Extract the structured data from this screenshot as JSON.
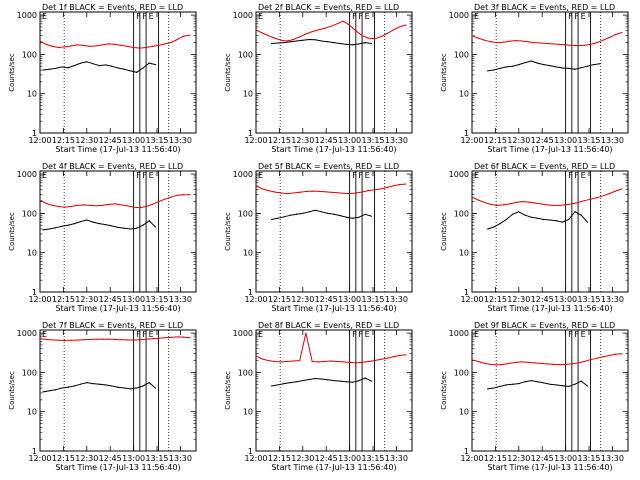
{
  "figure": {
    "xlabel": "Start Time (17-Jul-13 11:56:40)",
    "ylabel": "Counts/sec",
    "x_ticks": [
      "12:00",
      "12:15",
      "12:30",
      "12:45",
      "13:00",
      "13:15",
      "13:30"
    ],
    "x_tick_minutes": [
      0,
      15,
      30,
      45,
      60,
      75,
      90
    ],
    "x_range_minutes": [
      0,
      100
    ],
    "y_ticks": [
      "1",
      "10",
      "100",
      "1000"
    ],
    "y_tick_values": [
      1,
      10,
      100,
      1000
    ],
    "y_range": [
      1,
      1200
    ],
    "y_scale": "log",
    "colors": {
      "events": "#000000",
      "lld": "#e00000"
    },
    "flag_labels": [
      "F",
      "F",
      "E"
    ]
  },
  "chart_data": [
    {
      "type": "line",
      "title": "Det 1f BLACK = Events, RED = LLD",
      "series": [
        {
          "name": "Events",
          "color": "#000000",
          "x": [
            2,
            6,
            10,
            14,
            18,
            22,
            26,
            30,
            34,
            38,
            42,
            46,
            50,
            54,
            58,
            62,
            66,
            70,
            74
          ],
          "y": [
            40,
            42,
            44,
            48,
            46,
            52,
            60,
            65,
            58,
            52,
            54,
            50,
            45,
            42,
            38,
            35,
            45,
            60,
            55
          ]
        },
        {
          "name": "LLD",
          "color": "#e00000",
          "x": [
            0,
            4,
            8,
            12,
            16,
            20,
            24,
            28,
            32,
            36,
            40,
            44,
            48,
            52,
            56,
            60,
            64,
            68,
            72,
            76,
            80,
            84,
            88,
            92,
            96
          ],
          "y": [
            220,
            180,
            160,
            150,
            155,
            165,
            175,
            170,
            160,
            165,
            175,
            185,
            180,
            170,
            160,
            150,
            145,
            150,
            160,
            170,
            185,
            200,
            240,
            290,
            310
          ]
        }
      ],
      "dotted_x": [
        15.5,
        82.5
      ],
      "flag_x": [
        60,
        64,
        68,
        76
      ]
    },
    {
      "type": "line",
      "title": "Det 2f BLACK = Events, RED = LLD",
      "series": [
        {
          "name": "Events",
          "color": "#000000",
          "x": [
            10,
            14,
            18,
            22,
            26,
            30,
            34,
            38,
            42,
            46,
            50,
            54,
            58,
            62,
            66,
            70,
            74
          ],
          "y": [
            190,
            195,
            200,
            210,
            220,
            230,
            240,
            235,
            220,
            210,
            200,
            190,
            180,
            175,
            185,
            200,
            190
          ]
        },
        {
          "name": "LLD",
          "color": "#e00000",
          "x": [
            0,
            4,
            8,
            12,
            16,
            20,
            24,
            28,
            32,
            36,
            40,
            44,
            48,
            52,
            56,
            60,
            64,
            68,
            72,
            76,
            80,
            84,
            88,
            92,
            96
          ],
          "y": [
            420,
            350,
            300,
            260,
            230,
            220,
            240,
            280,
            330,
            380,
            420,
            460,
            520,
            600,
            700,
            550,
            400,
            300,
            260,
            250,
            280,
            340,
            420,
            500,
            560
          ]
        }
      ],
      "dotted_x": [
        15.5,
        82.5
      ],
      "flag_x": [
        60,
        64,
        68,
        76
      ]
    },
    {
      "type": "line",
      "title": "Det 3f BLACK = Events, RED = LLD",
      "series": [
        {
          "name": "Events",
          "color": "#000000",
          "x": [
            10,
            14,
            18,
            22,
            26,
            30,
            34,
            38,
            42,
            46,
            50,
            54,
            58,
            62,
            66,
            70,
            74,
            78,
            82
          ],
          "y": [
            38,
            40,
            44,
            48,
            50,
            55,
            62,
            68,
            60,
            55,
            52,
            48,
            45,
            44,
            42,
            46,
            50,
            55,
            58
          ]
        },
        {
          "name": "LLD",
          "color": "#e00000",
          "x": [
            0,
            4,
            8,
            12,
            16,
            20,
            24,
            28,
            32,
            36,
            40,
            44,
            48,
            52,
            56,
            60,
            64,
            68,
            72,
            76,
            80,
            84,
            88,
            92,
            96
          ],
          "y": [
            300,
            260,
            230,
            210,
            200,
            205,
            215,
            225,
            220,
            210,
            200,
            195,
            190,
            185,
            180,
            175,
            170,
            168,
            170,
            180,
            200,
            230,
            270,
            320,
            360
          ]
        }
      ],
      "dotted_x": [
        15.5,
        82.5
      ],
      "flag_x": [
        60,
        64,
        68,
        76
      ]
    },
    {
      "type": "line",
      "title": "Det 4f BLACK = Events, RED = LLD",
      "series": [
        {
          "name": "Events",
          "color": "#000000",
          "x": [
            2,
            6,
            10,
            14,
            18,
            22,
            26,
            30,
            34,
            38,
            42,
            46,
            50,
            54,
            58,
            62,
            66,
            70,
            74
          ],
          "y": [
            38,
            40,
            43,
            47,
            50,
            55,
            62,
            68,
            60,
            55,
            52,
            48,
            44,
            42,
            40,
            42,
            50,
            65,
            45
          ]
        },
        {
          "name": "LLD",
          "color": "#e00000",
          "x": [
            0,
            4,
            8,
            12,
            16,
            20,
            24,
            28,
            32,
            36,
            40,
            44,
            48,
            52,
            56,
            60,
            64,
            68,
            72,
            76,
            80,
            84,
            88,
            92,
            96
          ],
          "y": [
            220,
            180,
            160,
            150,
            145,
            150,
            160,
            165,
            160,
            155,
            160,
            170,
            175,
            165,
            155,
            145,
            140,
            150,
            170,
            200,
            230,
            260,
            290,
            300,
            300
          ]
        }
      ],
      "dotted_x": [
        15.5,
        82.5
      ],
      "flag_x": [
        60,
        64,
        68,
        76
      ]
    },
    {
      "type": "line",
      "title": "Det 5f BLACK = Events, RED = LLD",
      "series": [
        {
          "name": "Events",
          "color": "#000000",
          "x": [
            10,
            14,
            18,
            22,
            26,
            30,
            34,
            38,
            42,
            46,
            50,
            54,
            58,
            62,
            66,
            70,
            74
          ],
          "y": [
            70,
            75,
            82,
            90,
            95,
            100,
            110,
            120,
            110,
            100,
            95,
            88,
            80,
            75,
            80,
            95,
            85
          ]
        },
        {
          "name": "LLD",
          "color": "#e00000",
          "x": [
            0,
            4,
            8,
            12,
            16,
            20,
            24,
            28,
            32,
            36,
            40,
            44,
            48,
            52,
            56,
            60,
            64,
            68,
            72,
            76,
            80,
            84,
            88,
            92,
            96
          ],
          "y": [
            500,
            420,
            380,
            350,
            330,
            320,
            330,
            345,
            360,
            370,
            365,
            355,
            345,
            335,
            325,
            320,
            330,
            350,
            380,
            400,
            420,
            460,
            500,
            540,
            560
          ]
        }
      ],
      "dotted_x": [
        15.5,
        82.5
      ],
      "flag_x": [
        60,
        64,
        68,
        76
      ]
    },
    {
      "type": "line",
      "title": "Det 6f BLACK = Events, RED = LLD",
      "series": [
        {
          "name": "Events",
          "color": "#000000",
          "x": [
            10,
            14,
            18,
            22,
            26,
            30,
            34,
            38,
            42,
            46,
            50,
            54,
            58,
            62,
            66,
            70,
            74
          ],
          "y": [
            40,
            45,
            55,
            70,
            95,
            110,
            90,
            80,
            75,
            70,
            68,
            65,
            60,
            70,
            110,
            90,
            60
          ]
        },
        {
          "name": "LLD",
          "color": "#e00000",
          "x": [
            0,
            4,
            8,
            12,
            16,
            20,
            24,
            28,
            32,
            36,
            40,
            44,
            48,
            52,
            56,
            60,
            64,
            68,
            72,
            76,
            80,
            84,
            88,
            92,
            96
          ],
          "y": [
            260,
            220,
            190,
            170,
            160,
            165,
            175,
            190,
            200,
            195,
            185,
            175,
            165,
            160,
            160,
            165,
            175,
            190,
            210,
            230,
            250,
            280,
            320,
            370,
            420
          ]
        }
      ],
      "dotted_x": [
        15.5,
        82.5
      ],
      "flag_x": [
        60,
        64,
        68,
        76
      ]
    },
    {
      "type": "line",
      "title": "Det 7f BLACK = Events, RED = LLD",
      "series": [
        {
          "name": "Events",
          "color": "#000000",
          "x": [
            2,
            6,
            10,
            14,
            18,
            22,
            26,
            30,
            34,
            38,
            42,
            46,
            50,
            54,
            58,
            62,
            66,
            70,
            74
          ],
          "y": [
            32,
            34,
            36,
            40,
            42,
            45,
            50,
            55,
            52,
            50,
            48,
            45,
            42,
            40,
            38,
            40,
            45,
            55,
            40
          ]
        },
        {
          "name": "LLD",
          "color": "#e00000",
          "x": [
            0,
            4,
            8,
            12,
            16,
            20,
            24,
            28,
            32,
            36,
            40,
            44,
            48,
            52,
            56,
            60,
            64,
            68,
            72,
            76,
            80,
            84,
            88,
            92,
            96
          ],
          "y": [
            720,
            690,
            670,
            660,
            650,
            655,
            665,
            680,
            690,
            700,
            705,
            700,
            690,
            680,
            670,
            665,
            680,
            700,
            720,
            740,
            760,
            780,
            800,
            790,
            760
          ]
        }
      ],
      "dotted_x": [
        15.5,
        82.5
      ],
      "flag_x": [
        60,
        64,
        68,
        76
      ]
    },
    {
      "type": "line",
      "title": "Det 8f BLACK = Events, RED = LLD",
      "series": [
        {
          "name": "Events",
          "color": "#000000",
          "x": [
            10,
            14,
            18,
            22,
            26,
            30,
            34,
            38,
            42,
            46,
            50,
            54,
            58,
            62,
            66,
            70,
            74
          ],
          "y": [
            45,
            48,
            52,
            55,
            58,
            62,
            66,
            70,
            68,
            65,
            62,
            60,
            58,
            56,
            62,
            72,
            60
          ]
        },
        {
          "name": "LLD",
          "color": "#e00000",
          "x": [
            0,
            4,
            8,
            12,
            16,
            20,
            24,
            28,
            32,
            36,
            40,
            44,
            48,
            52,
            56,
            60,
            64,
            68,
            72,
            76,
            80,
            84,
            88,
            92,
            96
          ],
          "y": [
            260,
            220,
            200,
            190,
            185,
            190,
            195,
            200,
            1000,
            190,
            185,
            190,
            195,
            190,
            185,
            180,
            175,
            180,
            190,
            200,
            215,
            230,
            250,
            270,
            280
          ]
        }
      ],
      "dotted_x": [
        15.5,
        82.5
      ],
      "flag_x": [
        60,
        64,
        68,
        76
      ]
    },
    {
      "type": "line",
      "title": "Det 9f BLACK = Events, RED = LLD",
      "series": [
        {
          "name": "Events",
          "color": "#000000",
          "x": [
            10,
            14,
            18,
            22,
            26,
            30,
            34,
            38,
            42,
            46,
            50,
            54,
            58,
            62,
            66,
            70,
            74
          ],
          "y": [
            38,
            40,
            44,
            48,
            50,
            52,
            58,
            62,
            58,
            54,
            50,
            48,
            46,
            44,
            50,
            60,
            45
          ]
        },
        {
          "name": "LLD",
          "color": "#e00000",
          "x": [
            0,
            4,
            8,
            12,
            16,
            20,
            24,
            28,
            32,
            36,
            40,
            44,
            48,
            52,
            56,
            60,
            64,
            68,
            72,
            76,
            80,
            84,
            88,
            92,
            96
          ],
          "y": [
            210,
            190,
            170,
            160,
            155,
            160,
            170,
            180,
            185,
            180,
            175,
            170,
            165,
            160,
            158,
            160,
            165,
            175,
            190,
            210,
            230,
            250,
            270,
            290,
            300
          ]
        }
      ],
      "dotted_x": [
        15.5,
        82.5
      ],
      "flag_x": [
        60,
        64,
        68,
        76
      ]
    }
  ]
}
